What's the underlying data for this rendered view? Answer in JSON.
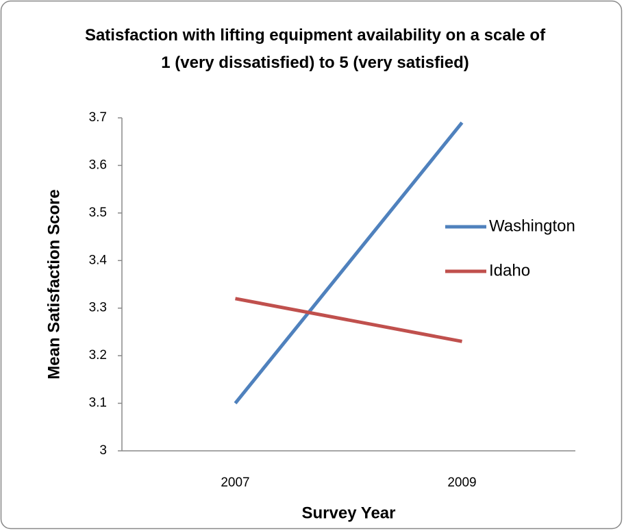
{
  "chart_data": {
    "type": "line",
    "title": "Satisfaction with lifting equipment availability on a scale of 1 (very dissatisfied) to 5 (very satisfied)",
    "x_label": "Survey Year",
    "y_label": "Mean Satisfaction Score",
    "categories": [
      "2007",
      "2009"
    ],
    "series": [
      {
        "name": "Washington",
        "color": "#4f81bd",
        "values": [
          3.1,
          3.69
        ]
      },
      {
        "name": "Idaho",
        "color": "#c0504d",
        "values": [
          3.32,
          3.23
        ]
      }
    ],
    "ylim": [
      3,
      3.7
    ],
    "yticks": [
      3,
      3.1,
      3.2,
      3.3,
      3.4,
      3.5,
      3.6,
      3.7
    ],
    "grid": false,
    "legend": "right"
  }
}
